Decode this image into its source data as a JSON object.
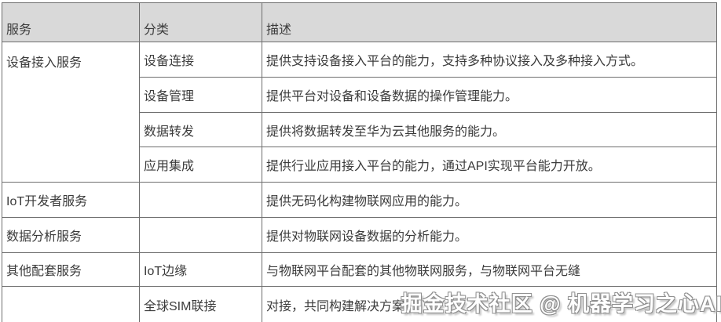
{
  "table": {
    "headers": [
      "服务",
      "分类",
      "描述"
    ],
    "rows": [
      {
        "service": "设备接入服务",
        "category": "设备连接",
        "description": "提供支持设备接入平台的能力，支持多种协议接入及多种接入方式。"
      },
      {
        "category": "设备管理",
        "description": "提供平台对设备和设备数据的操作管理能力。"
      },
      {
        "category": "数据转发",
        "description": "提供将数据转发至华为云其他服务的能力。"
      },
      {
        "category": "应用集成",
        "description": "提供行业应用接入平台的能力，通过API实现平台能力开放。"
      },
      {
        "service": "IoT开发者服务",
        "category": "",
        "description": "提供无码化构建物联网应用的能力。"
      },
      {
        "service": "数据分析服务",
        "category": "",
        "description": "提供对物联网设备数据的分析能力。"
      },
      {
        "service": "其他配套服务",
        "category": "IoT边缘",
        "description": "与物联网平台配套的其他物联网服务，与物联网平台无缝"
      },
      {
        "service": "",
        "category": "全球SIM联接",
        "description": "对接，共同构建解决方案。"
      }
    ]
  },
  "watermark": {
    "text": "掘金技术社区 @ 机器学习之心AI"
  },
  "colors": {
    "header_bg": "#d9d9d9",
    "border": "#6e6e6e",
    "text": "#3b3b3b",
    "watermark_outline": "#8f8f8f"
  }
}
